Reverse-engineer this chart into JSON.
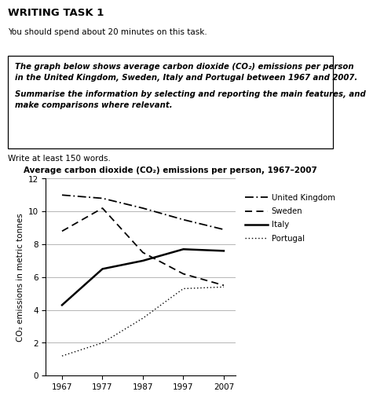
{
  "title": "Average carbon dioxide (CO₂) emissions per person, 1967–2007",
  "header": "WRITING TASK 1",
  "subheader": "You should spend about 20 minutes on this task.",
  "box_line1": "The graph below shows average carbon dioxide (CO₂) emissions per person",
  "box_line2": "in the United Kingdom, Sweden, Italy and Portugal between 1967 and 2007.",
  "box_line3": "Summarise the information by selecting and reporting the main features, and",
  "box_line4": "make comparisons where relevant.",
  "footer": "Write at least 150 words.",
  "years": [
    1967,
    1977,
    1987,
    1997,
    2007
  ],
  "uk": [
    11.0,
    10.8,
    10.2,
    9.5,
    8.9
  ],
  "sweden": [
    8.8,
    10.2,
    7.5,
    6.2,
    5.5
  ],
  "italy": [
    4.3,
    6.5,
    7.0,
    7.7,
    7.6
  ],
  "portugal": [
    1.2,
    2.0,
    3.5,
    5.3,
    5.4
  ],
  "ylim": [
    0,
    12
  ],
  "yticks": [
    0,
    2,
    4,
    6,
    8,
    10,
    12
  ],
  "ylabel": "CO₂ emissions in metric tonnes",
  "bg_color": "#ffffff",
  "grid_color": "#aaaaaa",
  "line_color": "#000000"
}
